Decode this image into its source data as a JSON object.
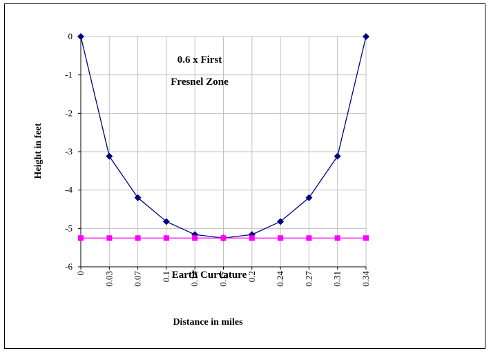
{
  "chart_data": {
    "type": "line",
    "x": [
      0,
      0.03,
      0.07,
      0.1,
      0.14,
      0.17,
      0.2,
      0.24,
      0.27,
      0.31,
      0.34
    ],
    "xtick_labels": [
      "0",
      "0.03",
      "0.07",
      "0.1",
      "0.14",
      "0.17",
      "0.2",
      "0.24",
      "0.27",
      "0.31",
      "0.34"
    ],
    "xlabel": "Distance in miles",
    "ylabel": "Height in feet",
    "ylim": [
      -6,
      0
    ],
    "yticks": [
      0,
      -1,
      -2,
      -3,
      -4,
      -5,
      -6
    ],
    "ytick_labels": [
      "0",
      "-1",
      "-2",
      "-3",
      "-4",
      "-5",
      "-6"
    ],
    "grid": true,
    "annotations": [
      {
        "text": "0.6 x First"
      },
      {
        "text": "Fresnel Zone"
      },
      {
        "text": "Earth Curvature"
      }
    ],
    "series": [
      {
        "values": [
          0,
          -3.12,
          -4.2,
          -4.82,
          -5.16,
          -5.25,
          -5.16,
          -4.82,
          -4.2,
          -3.12,
          0
        ],
        "color": "#000080",
        "marker": "diamond",
        "marker_color": "#000080"
      },
      {
        "values": [
          -5.25,
          -5.25,
          -5.25,
          -5.25,
          -5.25,
          -5.25,
          -5.25,
          -5.25,
          -5.25,
          -5.25,
          -5.25
        ],
        "color": "#FF00FF",
        "marker": "square",
        "marker_color": "#FF00FF"
      }
    ]
  }
}
